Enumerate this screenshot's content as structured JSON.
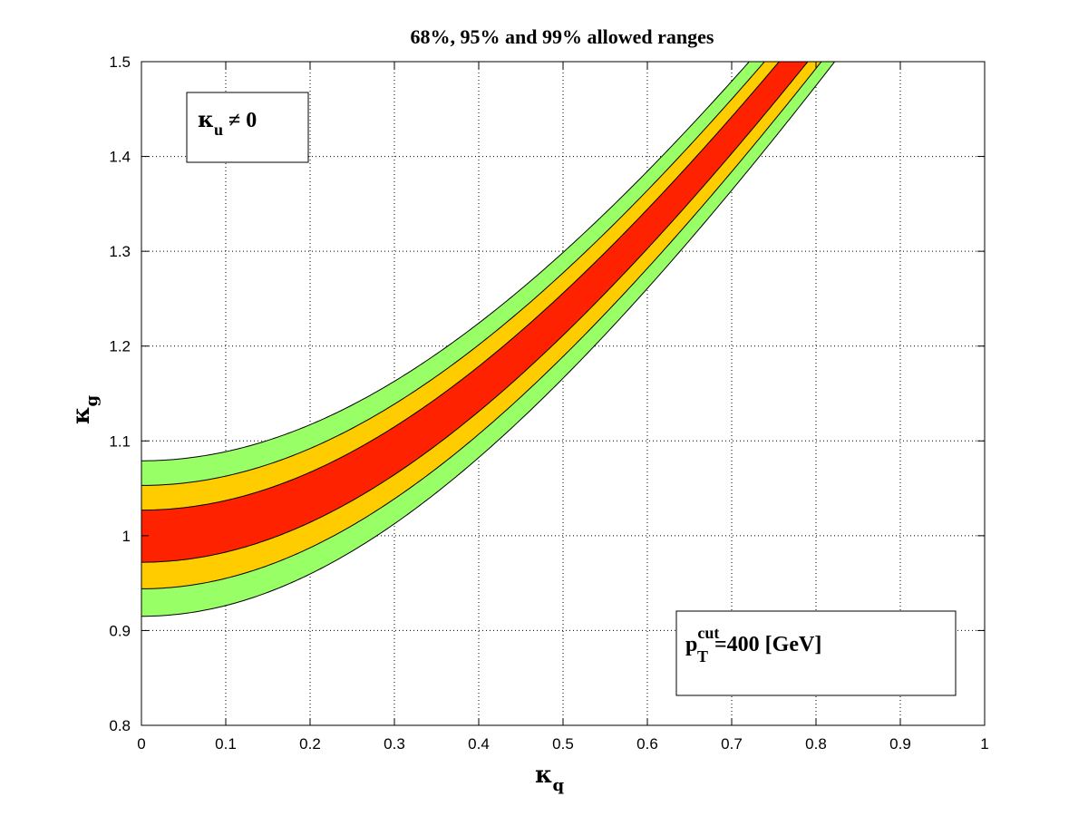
{
  "chart_data": {
    "type": "area",
    "title": "68%, 95% and 99% allowed ranges",
    "xlabel": {
      "base": "κ",
      "sub": "q"
    },
    "ylabel": {
      "base": "κ",
      "sub": "g"
    },
    "xlim": [
      0,
      1
    ],
    "ylim": [
      0.8,
      1.5
    ],
    "x_ticks": [
      "0",
      "0.1",
      "0.2",
      "0.3",
      "0.4",
      "0.5",
      "0.6",
      "0.7",
      "0.8",
      "0.9",
      "1"
    ],
    "y_ticks": [
      "0.8",
      "0.9",
      "1",
      "1.1",
      "1.2",
      "1.3",
      "1.4",
      "1.5"
    ],
    "x_tick_values": [
      0,
      0.1,
      0.2,
      0.3,
      0.4,
      0.5,
      0.6,
      0.7,
      0.8,
      0.9,
      1
    ],
    "y_tick_values": [
      0.8,
      0.9,
      1.0,
      1.1,
      1.2,
      1.3,
      1.4,
      1.5
    ],
    "grid": true,
    "band_model": "kappa_g = sqrt(c^2 + a*kappa_q^2), with c = band boundary value at kappa_q = 0",
    "band_a": 2.09,
    "band_boundaries_at_kappa_q_0": [
      1.079,
      1.053,
      1.027,
      0.972,
      0.944,
      0.915
    ],
    "bands": [
      {
        "level": "99%",
        "color": "#99ff66",
        "outer": [
          1.079,
          0.915
        ]
      },
      {
        "level": "95%",
        "color": "#ffcc00",
        "outer": [
          1.053,
          0.944
        ]
      },
      {
        "level": "68%",
        "color": "#ff2200",
        "outer": [
          1.027,
          0.972
        ]
      }
    ],
    "annotations": [
      {
        "id": "kappa-u-box",
        "base": "κ",
        "sub": "u",
        "rest": " ≠ 0"
      },
      {
        "id": "pt-cut-box",
        "base": "p",
        "sup": "cut",
        "sub": "T",
        "rest": "=400 [GeV]"
      }
    ]
  }
}
